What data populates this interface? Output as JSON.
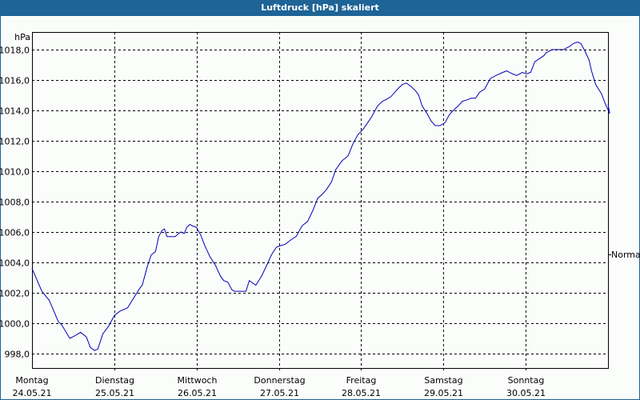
{
  "window": {
    "title": "Luftdruck [hPa] skaliert"
  },
  "colors": {
    "titlebar": "#1e6496",
    "line": "#0000b4",
    "background": "#fbfdfb",
    "grid": "#000000"
  },
  "chart_data": {
    "type": "line",
    "title": "Luftdruck [hPa] skaliert",
    "ylabel": "hPa",
    "xlabel": "",
    "ylim": [
      997.0,
      1019.0
    ],
    "yticks": [
      "1018,0",
      "1016,0",
      "1014,0",
      "1012,0",
      "1010,0",
      "1008,0",
      "1006,0",
      "1004,0",
      "1002,0",
      "1000,0",
      "998,0"
    ],
    "ytick_values": [
      1018,
      1016,
      1014,
      1012,
      1010,
      1008,
      1006,
      1004,
      1002,
      1000,
      998
    ],
    "reference_line": {
      "label": "Normal",
      "value": 1004.7
    },
    "grid": true,
    "legend": null,
    "x_categories": [
      {
        "day": "Montag",
        "date": "24.05.21"
      },
      {
        "day": "Dienstag",
        "date": "25.05.21"
      },
      {
        "day": "Mittwoch",
        "date": "26.05.21"
      },
      {
        "day": "Donnerstag",
        "date": "27.05.21"
      },
      {
        "day": "Freitag",
        "date": "28.05.21"
      },
      {
        "day": "Samstag",
        "date": "29.05.21"
      },
      {
        "day": "Sonntag",
        "date": "30.05.21"
      }
    ],
    "series": [
      {
        "name": "Luftdruck",
        "unit": "hPa",
        "x_day_fraction": [
          0.0,
          0.12,
          0.21,
          0.32,
          0.36,
          0.46,
          0.53,
          0.59,
          0.66,
          0.71,
          0.76,
          0.8,
          0.86,
          0.93,
          1.0,
          1.07,
          1.16,
          1.31,
          1.34,
          1.4,
          1.45,
          1.5,
          1.54,
          1.58,
          1.61,
          1.64,
          1.7,
          1.74,
          1.78,
          1.81,
          1.85,
          1.88,
          1.92,
          1.95,
          2.0,
          2.05,
          2.1,
          2.16,
          2.23,
          2.29,
          2.33,
          2.38,
          2.43,
          2.46,
          2.55,
          2.6,
          2.64,
          2.72,
          2.79,
          2.86,
          2.91,
          2.97,
          3.02,
          3.08,
          3.15,
          3.21,
          3.28,
          3.35,
          3.42,
          3.47,
          3.53,
          3.58,
          3.64,
          3.69,
          3.77,
          3.84,
          3.9,
          3.96,
          4.03,
          4.08,
          4.13,
          4.2,
          4.26,
          4.3,
          4.36,
          4.41,
          4.46,
          4.5,
          4.55,
          4.6,
          4.66,
          4.7,
          4.74,
          4.8,
          4.85,
          4.9,
          4.96,
          5.02,
          5.07,
          5.12,
          5.18,
          5.23,
          5.29,
          5.34,
          5.39,
          5.44,
          5.5,
          5.57,
          5.64,
          5.72,
          5.77,
          5.84,
          5.89,
          5.96,
          6.01,
          6.06,
          6.11,
          6.22,
          6.25,
          6.32,
          6.39,
          6.42,
          6.46,
          6.53,
          6.58,
          6.63,
          6.67,
          6.72,
          6.77,
          6.8,
          6.85,
          6.92,
          6.97,
          7.02
        ],
        "values": [
          1003.6,
          1002.1,
          1001.5,
          1000.1,
          999.9,
          999.0,
          999.2,
          999.4,
          999.1,
          998.4,
          998.2,
          998.3,
          999.3,
          999.8,
          1000.5,
          1000.8,
          1001.0,
          1002.3,
          1002.5,
          1003.7,
          1004.5,
          1004.7,
          1005.7,
          1006.1,
          1006.2,
          1005.7,
          1005.7,
          1005.7,
          1005.9,
          1006.0,
          1005.9,
          1006.3,
          1006.5,
          1006.4,
          1006.3,
          1005.8,
          1005.1,
          1004.4,
          1003.8,
          1003.1,
          1002.8,
          1002.7,
          1002.2,
          1002.1,
          1002.1,
          1002.1,
          1002.8,
          1002.5,
          1003.1,
          1003.9,
          1004.5,
          1005.0,
          1005.1,
          1005.2,
          1005.5,
          1005.7,
          1006.4,
          1006.7,
          1007.5,
          1008.2,
          1008.5,
          1008.8,
          1009.3,
          1010.1,
          1010.7,
          1011.0,
          1011.8,
          1012.4,
          1012.8,
          1013.2,
          1013.6,
          1014.3,
          1014.6,
          1014.7,
          1014.9,
          1015.2,
          1015.5,
          1015.7,
          1015.8,
          1015.6,
          1015.3,
          1015.0,
          1014.3,
          1013.8,
          1013.3,
          1013.0,
          1013.0,
          1013.2,
          1013.7,
          1014.0,
          1014.3,
          1014.6,
          1014.7,
          1014.8,
          1014.8,
          1015.2,
          1015.4,
          1016.1,
          1016.3,
          1016.5,
          1016.6,
          1016.4,
          1016.3,
          1016.5,
          1016.4,
          1016.5,
          1017.2,
          1017.6,
          1017.8,
          1018.0,
          1018.0,
          1018.0,
          1018.0,
          1018.2,
          1018.4,
          1018.5,
          1018.4,
          1017.9,
          1017.3,
          1016.6,
          1015.7,
          1015.1,
          1014.4,
          1013.8
        ],
        "values_note": "final points trail to about 1014.4 at end"
      }
    ]
  },
  "axis": {
    "y_unit_label": "hPa",
    "normal_label": "Normal"
  }
}
